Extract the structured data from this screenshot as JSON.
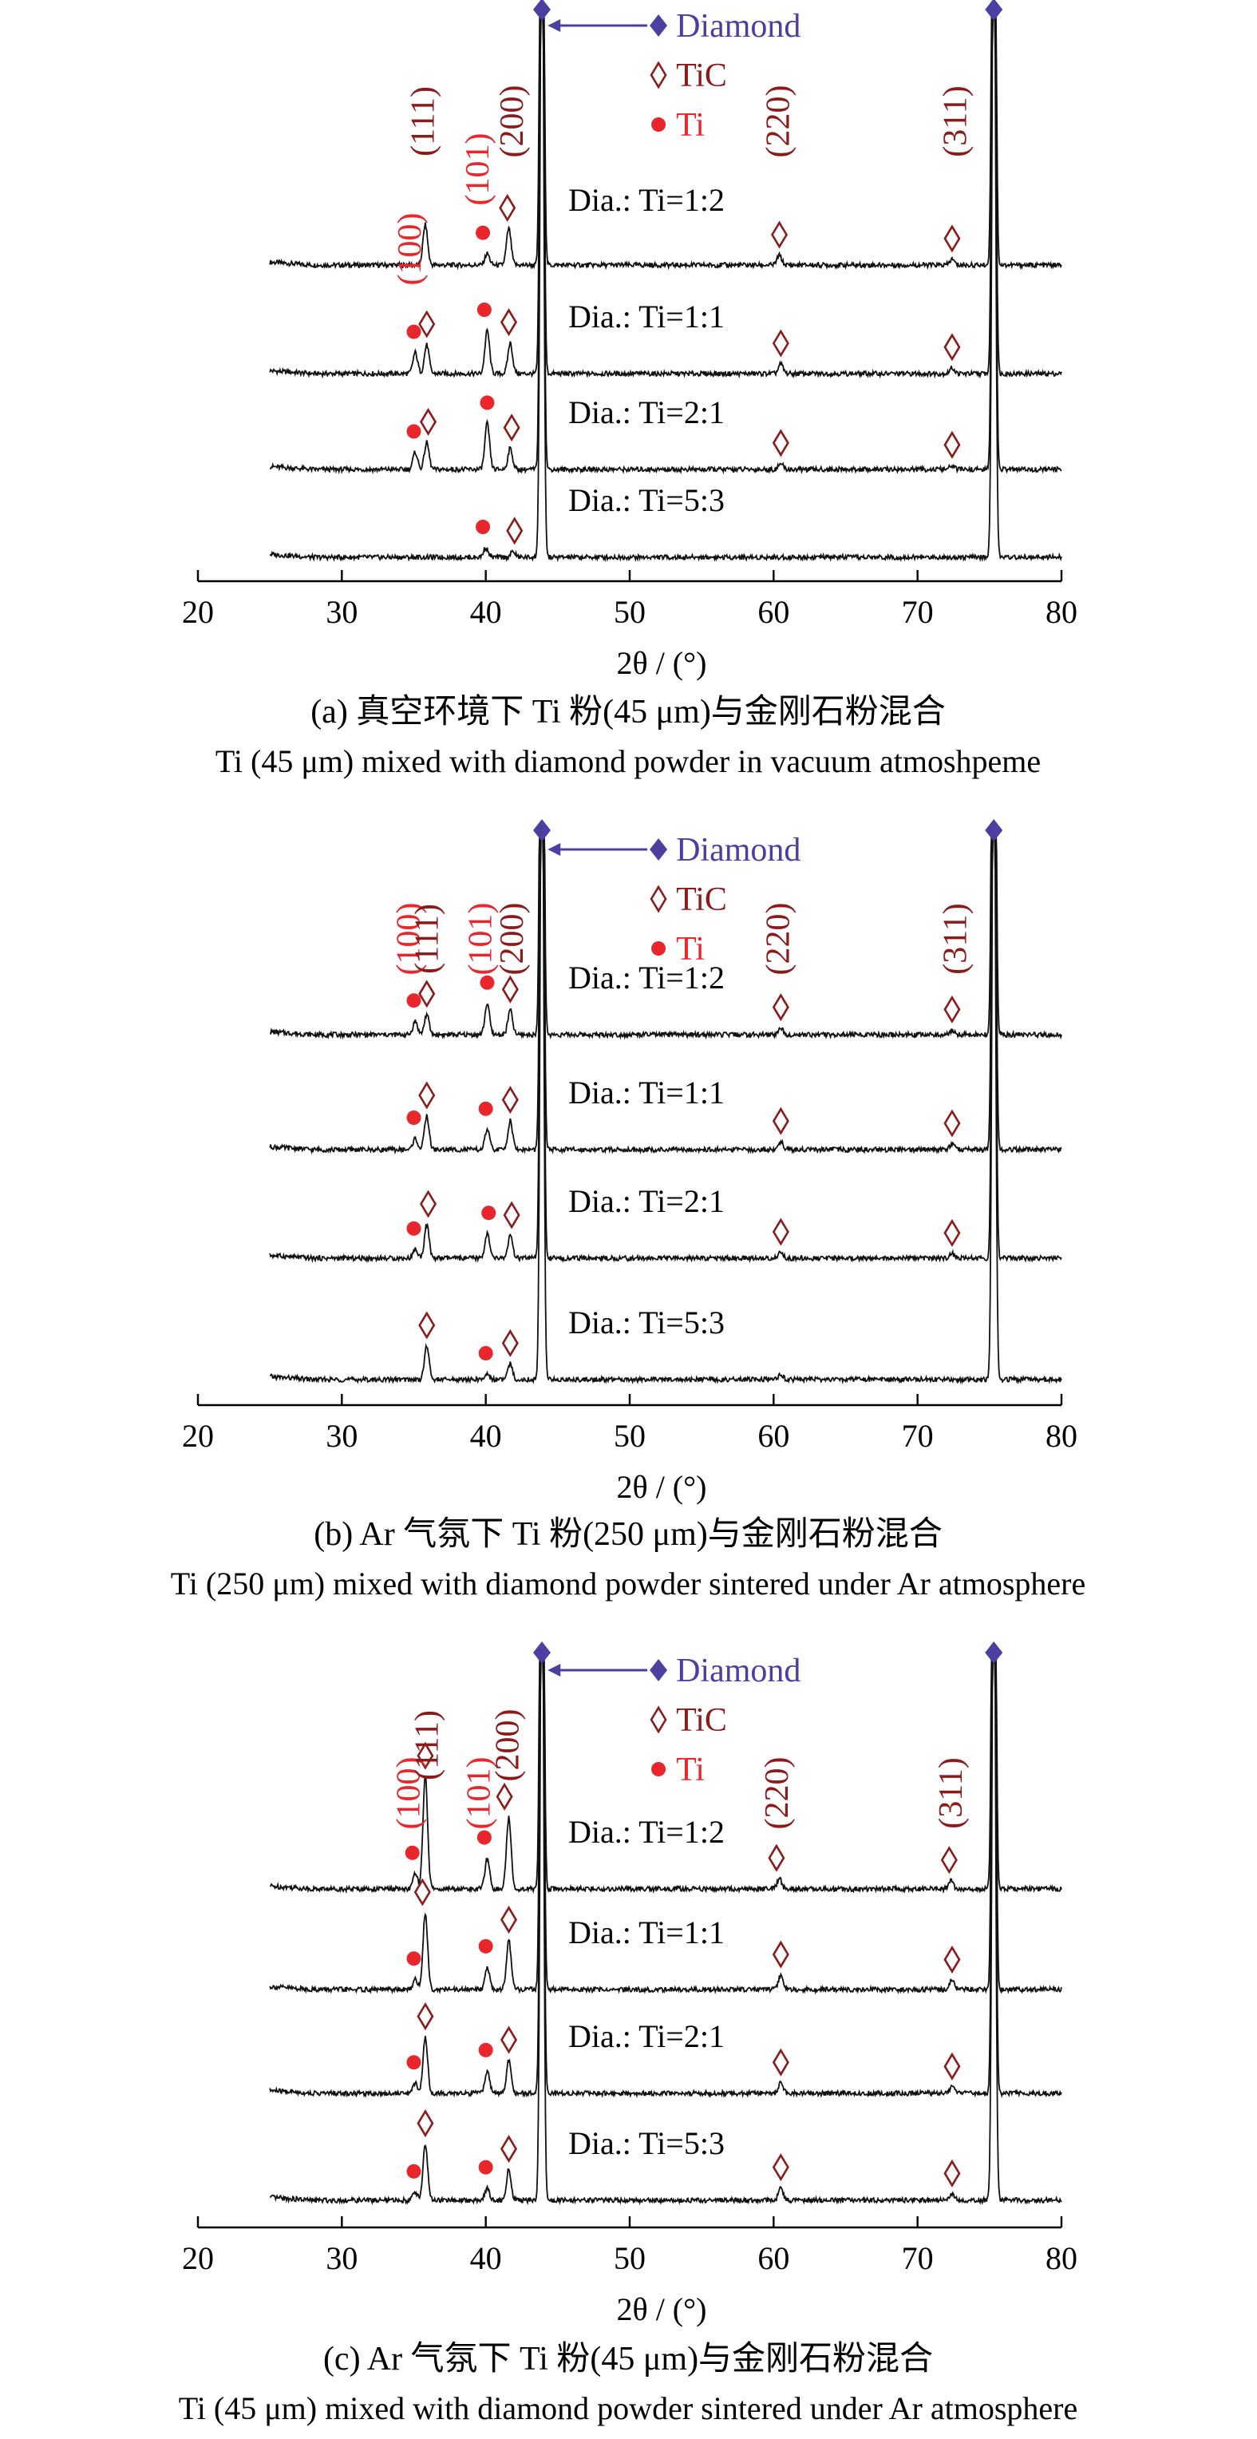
{
  "colors": {
    "diamond": "#4b3fa0",
    "tic": "#8b1a1a",
    "ti": "#e8262b",
    "trace": "#111111"
  },
  "chart_data": [
    {
      "type": "line",
      "caption_zh": "(a) 真空环境下 Ti 粉(45 μm)与金刚石粉混合",
      "caption_en": "Ti (45 μm) mixed with diamond powder in vacuum atmoshpeme",
      "xlabel": "2θ / (°)",
      "xlim": [
        20,
        80
      ],
      "x_ticks": [
        20,
        30,
        40,
        50,
        60,
        70,
        80
      ],
      "x_tick_labels": [
        "20",
        "30",
        "40",
        "50",
        "60",
        "70",
        "80"
      ],
      "legend": [
        "Diamond",
        "TiC",
        "Ti"
      ],
      "series": [
        {
          "name": "Dia.: Ti=1:2",
          "peaks": [
            {
              "x": 35.8,
              "h": 0.42,
              "m": "TiC"
            },
            {
              "x": 40.1,
              "h": 0.12,
              "m": "Ti"
            },
            {
              "x": 41.6,
              "h": 0.38,
              "m": "TiC"
            },
            {
              "x": 60.4,
              "h": 0.1,
              "m": "TiC"
            },
            {
              "x": 72.4,
              "h": 0.06,
              "m": "TiC"
            }
          ],
          "markers": [
            {
              "x": 39.8,
              "m": "Ti"
            },
            {
              "x": 41.5,
              "m": "TiC"
            },
            {
              "x": 60.4,
              "m": "TiC"
            },
            {
              "x": 72.4,
              "m": "TiC"
            }
          ]
        },
        {
          "name": "Dia.: Ti=1:1",
          "peaks": [
            {
              "x": 35.1,
              "h": 0.22,
              "m": "Ti"
            },
            {
              "x": 35.9,
              "h": 0.3,
              "m": "TiC"
            },
            {
              "x": 40.1,
              "h": 0.45,
              "m": "Ti"
            },
            {
              "x": 41.7,
              "h": 0.32,
              "m": "TiC"
            },
            {
              "x": 60.5,
              "h": 0.1,
              "m": "TiC"
            },
            {
              "x": 72.4,
              "h": 0.06,
              "m": "TiC"
            }
          ],
          "markers": [
            {
              "x": 35.0,
              "m": "Ti"
            },
            {
              "x": 35.9,
              "m": "TiC"
            },
            {
              "x": 39.9,
              "m": "Ti"
            },
            {
              "x": 41.6,
              "m": "TiC"
            },
            {
              "x": 60.5,
              "m": "TiC"
            },
            {
              "x": 72.4,
              "m": "TiC"
            }
          ]
        },
        {
          "name": "Dia.: Ti=2:1",
          "peaks": [
            {
              "x": 35.1,
              "h": 0.18,
              "m": "Ti"
            },
            {
              "x": 35.9,
              "h": 0.28,
              "m": "TiC"
            },
            {
              "x": 40.1,
              "h": 0.48,
              "m": "Ti"
            },
            {
              "x": 41.7,
              "h": 0.22,
              "m": "TiC"
            },
            {
              "x": 60.5,
              "h": 0.06,
              "m": "TiC"
            },
            {
              "x": 72.4,
              "h": 0.04,
              "m": "TiC"
            }
          ],
          "markers": [
            {
              "x": 35.0,
              "m": "Ti"
            },
            {
              "x": 36.0,
              "m": "TiC"
            },
            {
              "x": 40.1,
              "m": "Ti"
            },
            {
              "x": 41.8,
              "m": "TiC"
            },
            {
              "x": 60.5,
              "m": "TiC"
            },
            {
              "x": 72.4,
              "m": "TiC"
            }
          ]
        },
        {
          "name": "Dia.: Ti=5:3",
          "peaks": [
            {
              "x": 40.0,
              "h": 0.1,
              "m": "Ti"
            },
            {
              "x": 41.9,
              "h": 0.06,
              "m": "TiC"
            }
          ],
          "markers": [
            {
              "x": 39.8,
              "m": "Ti"
            },
            {
              "x": 42.0,
              "m": "TiC"
            }
          ]
        }
      ],
      "peak_labels": [
        {
          "text": "(111)",
          "x": 35.6,
          "color": "tic",
          "row": "top"
        },
        {
          "text": "(101)",
          "x": 39.4,
          "color": "ti",
          "row": "mid"
        },
        {
          "text": "(200)",
          "x": 41.8,
          "color": "tic",
          "row": "top"
        },
        {
          "text": "(220)",
          "x": 60.3,
          "color": "tic",
          "row": "top"
        },
        {
          "text": "(311)",
          "x": 72.6,
          "color": "tic",
          "row": "top"
        },
        {
          "text": "(100)",
          "x": 34.7,
          "color": "ti",
          "row": "low"
        }
      ]
    },
    {
      "type": "line",
      "caption_zh": "(b) Ar 气氛下 Ti 粉(250 μm)与金刚石粉混合",
      "caption_en": "Ti (250 μm) mixed with diamond powder sintered under Ar atmosphere",
      "xlabel": "2θ / (°)",
      "xlim": [
        20,
        80
      ],
      "x_ticks": [
        20,
        30,
        40,
        50,
        60,
        70,
        80
      ],
      "x_tick_labels": [
        "20",
        "30",
        "40",
        "50",
        "60",
        "70",
        "80"
      ],
      "legend": [
        "Diamond",
        "TiC",
        "Ti"
      ],
      "series": [
        {
          "name": "Dia.: Ti=1:2",
          "peaks": [
            {
              "x": 35.1,
              "h": 0.12,
              "m": "Ti"
            },
            {
              "x": 35.9,
              "h": 0.18,
              "m": "TiC"
            },
            {
              "x": 40.1,
              "h": 0.28,
              "m": "Ti"
            },
            {
              "x": 41.7,
              "h": 0.22,
              "m": "TiC"
            },
            {
              "x": 60.5,
              "h": 0.06,
              "m": "TiC"
            },
            {
              "x": 72.4,
              "h": 0.04,
              "m": "TiC"
            }
          ],
          "markers": [
            {
              "x": 35.0,
              "m": "Ti"
            },
            {
              "x": 35.9,
              "m": "TiC"
            },
            {
              "x": 40.1,
              "m": "Ti"
            },
            {
              "x": 41.7,
              "m": "TiC"
            },
            {
              "x": 60.5,
              "m": "TiC"
            },
            {
              "x": 72.4,
              "m": "TiC"
            }
          ]
        },
        {
          "name": "Dia.: Ti=1:1",
          "peaks": [
            {
              "x": 35.1,
              "h": 0.1,
              "m": "Ti"
            },
            {
              "x": 35.9,
              "h": 0.3,
              "m": "TiC"
            },
            {
              "x": 40.1,
              "h": 0.18,
              "m": "Ti"
            },
            {
              "x": 41.7,
              "h": 0.26,
              "m": "TiC"
            },
            {
              "x": 60.5,
              "h": 0.07,
              "m": "TiC"
            },
            {
              "x": 72.4,
              "h": 0.05,
              "m": "TiC"
            }
          ],
          "markers": [
            {
              "x": 35.0,
              "m": "Ti"
            },
            {
              "x": 35.9,
              "m": "TiC"
            },
            {
              "x": 40.0,
              "m": "Ti"
            },
            {
              "x": 41.7,
              "m": "TiC"
            },
            {
              "x": 60.5,
              "m": "TiC"
            },
            {
              "x": 72.4,
              "m": "TiC"
            }
          ]
        },
        {
          "name": "Dia.: Ti=2:1",
          "peaks": [
            {
              "x": 35.1,
              "h": 0.08,
              "m": "Ti"
            },
            {
              "x": 35.9,
              "h": 0.3,
              "m": "TiC"
            },
            {
              "x": 40.1,
              "h": 0.22,
              "m": "Ti"
            },
            {
              "x": 41.7,
              "h": 0.2,
              "m": "TiC"
            },
            {
              "x": 60.5,
              "h": 0.05,
              "m": "TiC"
            },
            {
              "x": 72.4,
              "h": 0.04,
              "m": "TiC"
            }
          ],
          "markers": [
            {
              "x": 35.0,
              "m": "Ti"
            },
            {
              "x": 36.0,
              "m": "TiC"
            },
            {
              "x": 40.2,
              "m": "Ti"
            },
            {
              "x": 41.8,
              "m": "TiC"
            },
            {
              "x": 60.5,
              "m": "TiC"
            },
            {
              "x": 72.4,
              "m": "TiC"
            }
          ]
        },
        {
          "name": "Dia.: Ti=5:3",
          "peaks": [
            {
              "x": 35.9,
              "h": 0.3,
              "m": "TiC"
            },
            {
              "x": 40.1,
              "h": 0.05,
              "m": "Ti"
            },
            {
              "x": 41.7,
              "h": 0.14,
              "m": "TiC"
            },
            {
              "x": 60.5,
              "h": 0.04,
              "m": "TiC"
            }
          ],
          "markers": [
            {
              "x": 35.9,
              "m": "TiC"
            },
            {
              "x": 40.0,
              "m": "Ti"
            },
            {
              "x": 41.7,
              "m": "TiC"
            }
          ]
        }
      ],
      "peak_labels": [
        {
          "text": "(100)",
          "x": 34.6,
          "color": "ti",
          "row": "mid"
        },
        {
          "text": "(111)",
          "x": 35.9,
          "color": "tic",
          "row": "mid"
        },
        {
          "text": "(101)",
          "x": 39.6,
          "color": "ti",
          "row": "mid"
        },
        {
          "text": "(200)",
          "x": 41.8,
          "color": "tic",
          "row": "mid"
        },
        {
          "text": "(220)",
          "x": 60.3,
          "color": "tic",
          "row": "mid"
        },
        {
          "text": "(311)",
          "x": 72.6,
          "color": "tic",
          "row": "mid"
        }
      ]
    },
    {
      "type": "line",
      "caption_zh": "(c) Ar 气氛下 Ti 粉(45 μm)与金刚石粉混合",
      "caption_en": "Ti (45 μm) mixed with diamond powder sintered under Ar atmosphere",
      "xlabel": "2θ / (°)",
      "xlim": [
        20,
        80
      ],
      "x_ticks": [
        20,
        30,
        40,
        50,
        60,
        70,
        80
      ],
      "x_tick_labels": [
        "20",
        "30",
        "40",
        "50",
        "60",
        "70",
        "80"
      ],
      "legend": [
        "Diamond",
        "TiC",
        "Ti"
      ],
      "series": [
        {
          "name": "Dia.: Ti=1:2",
          "peaks": [
            {
              "x": 35.1,
              "h": 0.15,
              "m": "Ti"
            },
            {
              "x": 35.8,
              "h": 1.1,
              "m": "TiC"
            },
            {
              "x": 40.1,
              "h": 0.3,
              "m": "Ti"
            },
            {
              "x": 41.6,
              "h": 0.7,
              "m": "TiC"
            },
            {
              "x": 60.4,
              "h": 0.1,
              "m": "TiC"
            },
            {
              "x": 72.3,
              "h": 0.08,
              "m": "TiC"
            }
          ],
          "markers": [
            {
              "x": 34.9,
              "m": "Ti"
            },
            {
              "x": 35.8,
              "m": "TiC"
            },
            {
              "x": 39.9,
              "m": "Ti"
            },
            {
              "x": 41.3,
              "m": "TiC"
            },
            {
              "x": 60.2,
              "m": "TiC"
            },
            {
              "x": 72.2,
              "m": "TiC"
            }
          ]
        },
        {
          "name": "Dia.: Ti=1:1",
          "peaks": [
            {
              "x": 35.1,
              "h": 0.1,
              "m": "Ti"
            },
            {
              "x": 35.8,
              "h": 0.75,
              "m": "TiC"
            },
            {
              "x": 40.1,
              "h": 0.22,
              "m": "Ti"
            },
            {
              "x": 41.6,
              "h": 0.48,
              "m": "TiC"
            },
            {
              "x": 60.5,
              "h": 0.14,
              "m": "TiC"
            },
            {
              "x": 72.4,
              "h": 0.09,
              "m": "TiC"
            }
          ],
          "markers": [
            {
              "x": 35.0,
              "m": "Ti"
            },
            {
              "x": 35.6,
              "m": "TiC"
            },
            {
              "x": 40.0,
              "m": "Ti"
            },
            {
              "x": 41.6,
              "m": "TiC"
            },
            {
              "x": 60.5,
              "m": "TiC"
            },
            {
              "x": 72.4,
              "m": "TiC"
            }
          ]
        },
        {
          "name": "Dia.: Ti=2:1",
          "peaks": [
            {
              "x": 35.1,
              "h": 0.1,
              "m": "Ti"
            },
            {
              "x": 35.8,
              "h": 0.55,
              "m": "TiC"
            },
            {
              "x": 40.1,
              "h": 0.22,
              "m": "Ti"
            },
            {
              "x": 41.6,
              "h": 0.32,
              "m": "TiC"
            },
            {
              "x": 60.5,
              "h": 0.1,
              "m": "TiC"
            },
            {
              "x": 72.4,
              "h": 0.06,
              "m": "TiC"
            }
          ],
          "markers": [
            {
              "x": 35.0,
              "m": "Ti"
            },
            {
              "x": 35.8,
              "m": "TiC"
            },
            {
              "x": 40.0,
              "m": "Ti"
            },
            {
              "x": 41.6,
              "m": "TiC"
            },
            {
              "x": 60.5,
              "m": "TiC"
            },
            {
              "x": 72.4,
              "m": "TiC"
            }
          ]
        },
        {
          "name": "Dia.: Ti=5:3",
          "peaks": [
            {
              "x": 35.1,
              "h": 0.08,
              "m": "Ti"
            },
            {
              "x": 35.8,
              "h": 0.55,
              "m": "TiC"
            },
            {
              "x": 40.1,
              "h": 0.12,
              "m": "Ti"
            },
            {
              "x": 41.6,
              "h": 0.3,
              "m": "TiC"
            },
            {
              "x": 60.5,
              "h": 0.12,
              "m": "TiC"
            },
            {
              "x": 72.4,
              "h": 0.06,
              "m": "TiC"
            }
          ],
          "markers": [
            {
              "x": 35.0,
              "m": "Ti"
            },
            {
              "x": 35.8,
              "m": "TiC"
            },
            {
              "x": 40.0,
              "m": "Ti"
            },
            {
              "x": 41.6,
              "m": "TiC"
            },
            {
              "x": 60.5,
              "m": "TiC"
            },
            {
              "x": 72.4,
              "m": "TiC"
            }
          ]
        }
      ],
      "peak_labels": [
        {
          "text": "(100)",
          "x": 34.6,
          "color": "ti",
          "row": "mid"
        },
        {
          "text": "(111)",
          "x": 35.9,
          "color": "tic",
          "row": "top"
        },
        {
          "text": "(101)",
          "x": 39.5,
          "color": "ti",
          "row": "mid"
        },
        {
          "text": "(200)",
          "x": 41.5,
          "color": "tic",
          "row": "top"
        },
        {
          "text": "(220)",
          "x": 60.2,
          "color": "tic",
          "row": "mid"
        },
        {
          "text": "(311)",
          "x": 72.3,
          "color": "tic",
          "row": "mid"
        }
      ]
    }
  ]
}
